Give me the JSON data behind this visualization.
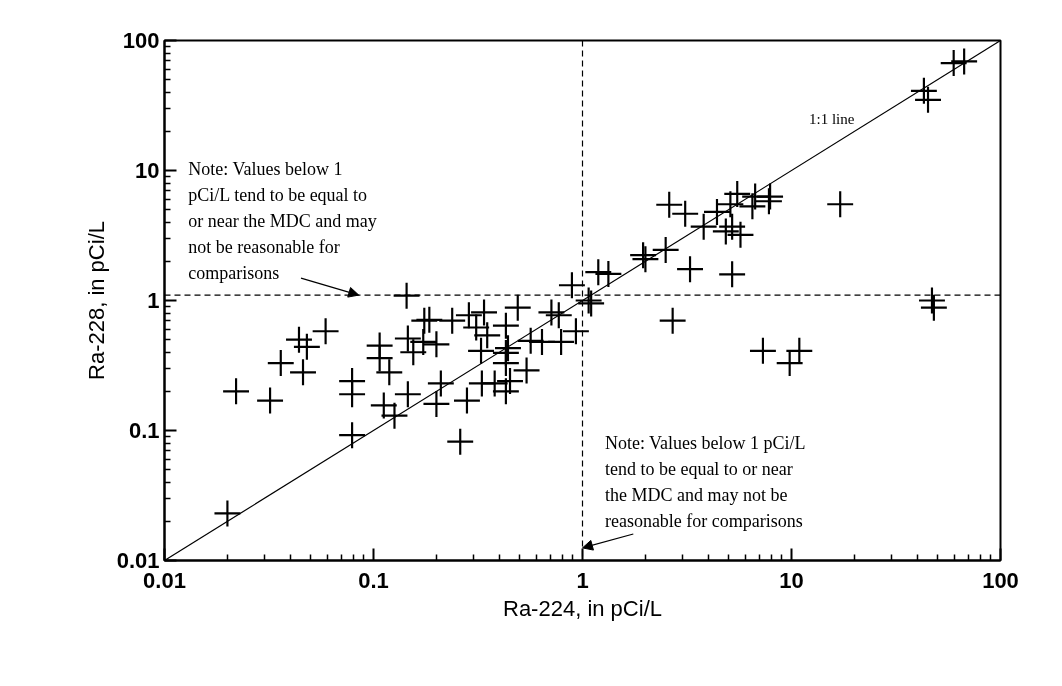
{
  "chart_data": {
    "type": "scatter",
    "xlabel": "Ra-224, in pCi/L",
    "ylabel": "Ra-228, in pCi/L",
    "log": "xy",
    "marker": "cross",
    "grid": false,
    "legend": false,
    "xlim": [
      0.01,
      100
    ],
    "ylim": [
      0.01,
      100
    ],
    "xticks": [
      0.01,
      0.1,
      1,
      10,
      100
    ],
    "yticks": [
      0.01,
      0.1,
      1,
      10,
      100
    ],
    "series": [
      {
        "color": "#000000",
        "x": [
          0.02,
          0.022,
          0.032,
          0.036,
          0.044,
          0.048,
          0.046,
          0.059,
          0.079,
          0.079,
          0.079,
          0.107,
          0.107,
          0.119,
          0.112,
          0.126,
          0.144,
          0.146,
          0.146,
          0.155,
          0.175,
          0.185,
          0.173,
          0.238,
          0.286,
          0.338,
          0.31,
          0.35,
          0.43,
          0.49,
          0.2,
          0.327,
          0.44,
          0.43,
          0.565,
          0.64,
          0.79,
          0.71,
          0.77,
          0.93,
          0.89,
          0.43,
          0.54,
          0.45,
          0.43,
          0.33,
          0.38,
          0.21,
          0.2,
          0.28,
          0.26,
          1.07,
          1.1,
          1.19,
          1.33,
          2.0,
          1.95,
          2.5,
          3.27,
          2.6,
          3.1,
          3.8,
          4.4,
          4.85,
          5.2,
          5.7,
          5.2,
          5.5,
          5.1,
          6.5,
          6.7,
          7.9,
          7.8,
          17.1,
          2.7,
          7.3,
          9.8,
          10.9,
          59.7,
          67,
          43,
          45,
          47,
          48
        ],
        "values": [
          0.023,
          0.2,
          0.17,
          0.33,
          0.5,
          0.44,
          0.28,
          0.58,
          0.24,
          0.19,
          0.092,
          0.45,
          0.36,
          0.28,
          0.156,
          0.13,
          1.09,
          0.51,
          0.19,
          0.4,
          0.7,
          0.71,
          0.48,
          0.7,
          0.77,
          0.81,
          0.62,
          0.54,
          0.64,
          0.88,
          0.46,
          0.41,
          0.43,
          0.395,
          0.49,
          0.48,
          0.48,
          0.81,
          0.77,
          0.58,
          1.31,
          0.33,
          0.29,
          0.24,
          0.2,
          0.23,
          0.23,
          0.23,
          0.16,
          0.17,
          0.082,
          1.0,
          0.95,
          1.65,
          1.6,
          2.08,
          2.23,
          2.45,
          1.74,
          5.45,
          4.65,
          3.7,
          4.8,
          3.4,
          3.7,
          3.2,
          1.59,
          6.6,
          5.5,
          5.3,
          6.3,
          6.3,
          5.8,
          5.5,
          0.7,
          0.41,
          0.33,
          0.41,
          67,
          69,
          41,
          35,
          1.0,
          0.88
        ]
      },
      {
        "type": "line",
        "name": "1:1 line",
        "marker": "none",
        "color": "#000000",
        "x": [
          0.01,
          100
        ],
        "values": [
          0.01,
          100
        ]
      }
    ],
    "ref_lines": [
      {
        "axis": "y",
        "value": 1.1,
        "label": "Note: Values below 1 pCi/L tend to be equal to or near the MDC and may not be reasonable for comparisons",
        "line_style": "dashed",
        "color": "#000000"
      },
      {
        "axis": "x",
        "value": 1,
        "label": "Note: Values below 1 pCi/L tend to be equal to or near the MDC and may not be reasonable for comparisons",
        "line_style": "dashed",
        "color": "#000000"
      }
    ]
  }
}
